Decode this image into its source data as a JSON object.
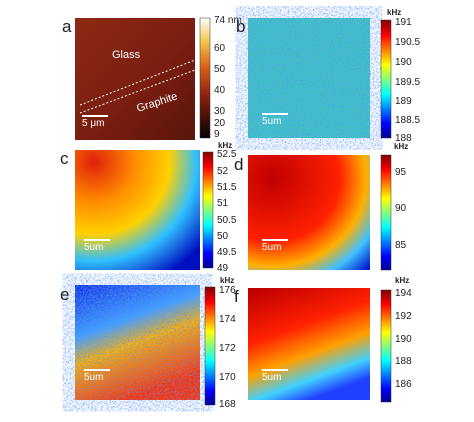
{
  "panels": [
    {
      "label": "a",
      "annotations": [
        "Glass",
        "Graphite"
      ],
      "scale_bar": "5 μm",
      "colorbar": {
        "ticks": [
          "74 nm",
          60,
          50,
          40,
          30,
          20,
          9
        ]
      }
    },
    {
      "label": "b",
      "scale_bar": "5um",
      "colorbar": {
        "unit": "kHz",
        "ticks": [
          191,
          190.5,
          190,
          189.5,
          189,
          188.5,
          188
        ]
      }
    },
    {
      "label": "c",
      "scale_bar": "5um",
      "colorbar": {
        "unit": "kHz",
        "ticks": [
          52.5,
          52,
          51.5,
          51,
          50.5,
          50,
          49.5,
          49
        ]
      }
    },
    {
      "label": "d",
      "scale_bar": "5um",
      "colorbar": {
        "unit": "kHz",
        "ticks": [
          95,
          90,
          85
        ]
      }
    },
    {
      "label": "e",
      "scale_bar": "5um",
      "colorbar": {
        "unit": "kHz",
        "ticks": [
          176,
          174,
          172,
          170,
          168
        ]
      }
    },
    {
      "label": "f",
      "scale_bar": "5um",
      "colorbar": {
        "unit": "kHz",
        "ticks": [
          194,
          192,
          190,
          188,
          186
        ]
      }
    }
  ]
}
